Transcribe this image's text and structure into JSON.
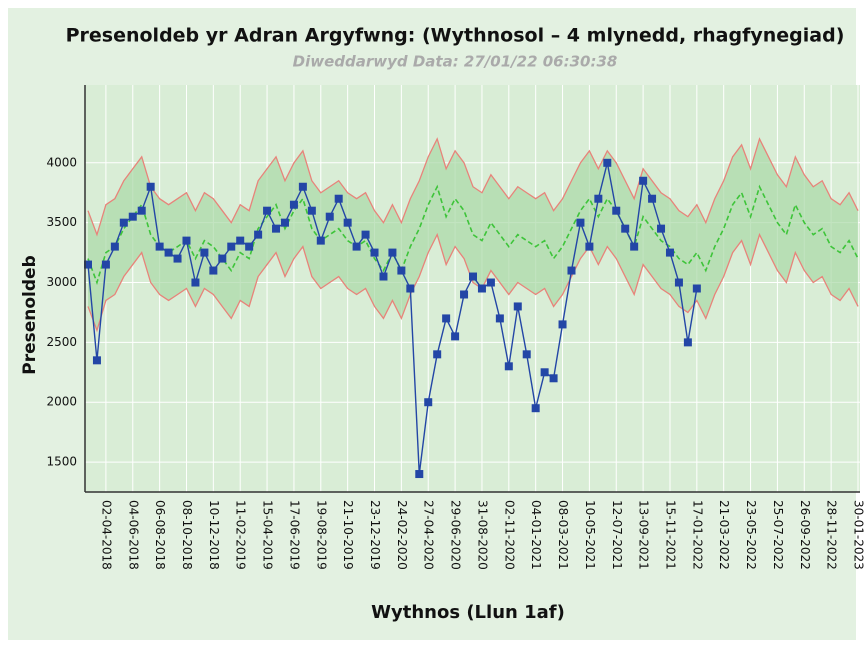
{
  "chart_data": {
    "type": "line",
    "title": "Presenoldeb yr Adran Argyfwng: (Wythnosol – 4 mlynedd, rhagfynegiad)",
    "subtitle": "Diweddarwyd Data: 27/01/22 06:30:38",
    "x_label": "Wythnos (Llun 1af)",
    "y_label": "Presenoldeb",
    "categories": [
      null,
      null,
      "02-04-2018",
      null,
      null,
      "04-06-2018",
      null,
      null,
      "06-08-2018",
      null,
      null,
      "08-10-2018",
      null,
      null,
      "10-12-2018",
      null,
      null,
      "11-02-2019",
      null,
      null,
      "15-04-2019",
      null,
      null,
      "17-06-2019",
      null,
      null,
      "19-08-2019",
      null,
      null,
      "21-10-2019",
      null,
      null,
      "23-12-2019",
      null,
      null,
      "24-02-2020",
      null,
      null,
      "27-04-2020",
      null,
      null,
      "29-06-2020",
      null,
      null,
      "31-08-2020",
      null,
      null,
      "02-11-2020",
      null,
      null,
      "04-01-2021",
      null,
      null,
      "08-03-2021",
      null,
      null,
      "10-05-2021",
      null,
      null,
      "12-07-2021",
      null,
      null,
      "13-09-2021",
      null,
      null,
      "15-11-2021",
      null,
      null,
      "17-01-2022",
      null,
      null,
      "21-03-2022",
      null,
      null,
      "23-05-2022",
      null,
      null,
      "25-07-2022",
      null,
      null,
      "26-09-2022",
      null,
      null,
      "28-11-2022",
      null,
      null,
      "30-01-2023"
    ],
    "ylim": [
      1250,
      4650
    ],
    "yticks": [
      1500,
      2000,
      2500,
      3000,
      3500,
      4000
    ],
    "band": {
      "fill": "#a9d8a6",
      "line_color": "#e8837a",
      "upper": [
        3600,
        3400,
        3650,
        3700,
        3850,
        3950,
        4050,
        3800,
        3700,
        3650,
        3700,
        3750,
        3600,
        3750,
        3700,
        3600,
        3500,
        3650,
        3600,
        3850,
        3950,
        4050,
        3850,
        4000,
        4100,
        3850,
        3750,
        3800,
        3850,
        3750,
        3700,
        3750,
        3600,
        3500,
        3650,
        3500,
        3700,
        3850,
        4050,
        4200,
        3950,
        4100,
        4000,
        3800,
        3750,
        3900,
        3800,
        3700,
        3800,
        3750,
        3700,
        3750,
        3600,
        3700,
        3850,
        4000,
        4100,
        3950,
        4100,
        4000,
        3850,
        3700,
        3950,
        3850,
        3750,
        3700,
        3600,
        3550,
        3650,
        3500,
        3700,
        3850,
        4050,
        4150,
        3950,
        4200,
        4050,
        3900,
        3800,
        4050,
        3900,
        3800,
        3850,
        3700,
        3650,
        3750,
        3600
      ],
      "lower": [
        2800,
        2600,
        2850,
        2900,
        3050,
        3150,
        3250,
        3000,
        2900,
        2850,
        2900,
        2950,
        2800,
        2950,
        2900,
        2800,
        2700,
        2850,
        2800,
        3050,
        3150,
        3250,
        3050,
        3200,
        3300,
        3050,
        2950,
        3000,
        3050,
        2950,
        2900,
        2950,
        2800,
        2700,
        2850,
        2700,
        2900,
        3050,
        3250,
        3400,
        3150,
        3300,
        3200,
        3000,
        2950,
        3100,
        3000,
        2900,
        3000,
        2950,
        2900,
        2950,
        2800,
        2900,
        3050,
        3200,
        3300,
        3150,
        3300,
        3200,
        3050,
        2900,
        3150,
        3050,
        2950,
        2900,
        2800,
        2750,
        2850,
        2700,
        2900,
        3050,
        3250,
        3350,
        3150,
        3400,
        3250,
        3100,
        3000,
        3250,
        3100,
        3000,
        3050,
        2900,
        2850,
        2950,
        2800
      ]
    },
    "series": [
      {
        "color": "#3ec43a",
        "dash": true,
        "values": [
          3200,
          3000,
          3250,
          3300,
          3450,
          3550,
          3650,
          3400,
          3300,
          3250,
          3300,
          3350,
          3200,
          3350,
          3300,
          3200,
          3100,
          3250,
          3200,
          3450,
          3550,
          3650,
          3450,
          3600,
          3700,
          3450,
          3350,
          3400,
          3450,
          3350,
          3300,
          3350,
          3200,
          3100,
          3250,
          3100,
          3300,
          3450,
          3650,
          3800,
          3550,
          3700,
          3600,
          3400,
          3350,
          3500,
          3400,
          3300,
          3400,
          3350,
          3300,
          3350,
          3200,
          3300,
          3450,
          3600,
          3700,
          3550,
          3700,
          3600,
          3450,
          3300,
          3550,
          3450,
          3350,
          3300,
          3200,
          3150,
          3250,
          3100,
          3300,
          3450,
          3650,
          3750,
          3550,
          3800,
          3650,
          3500,
          3400,
          3650,
          3500,
          3400,
          3450,
          3300,
          3250,
          3350,
          3200
        ]
      },
      {
        "color": "#2346a6",
        "marker": "square",
        "values": [
          3150,
          2350,
          3150,
          3300,
          3500,
          3550,
          3600,
          3800,
          3300,
          3250,
          3200,
          3350,
          3000,
          3250,
          3100,
          3200,
          3300,
          3350,
          3300,
          3400,
          3600,
          3450,
          3500,
          3650,
          3800,
          3600,
          3350,
          3550,
          3700,
          3500,
          3300,
          3400,
          3250,
          3050,
          3250,
          3100,
          2950,
          1400,
          2000,
          2400,
          2700,
          2550,
          2900,
          3050,
          2950,
          3000,
          2700,
          2300,
          2800,
          2400,
          1950,
          2250,
          2200,
          2650,
          3100,
          3500,
          3300,
          3700,
          4000,
          3600,
          3450,
          3300,
          3850,
          3700,
          3450,
          3250,
          3000,
          2500,
          2950,
          null,
          null,
          null,
          null,
          null,
          null,
          null,
          null,
          null,
          null,
          null,
          null,
          null,
          null,
          null,
          null,
          null,
          null
        ]
      }
    ],
    "background": "#d9edd6"
  }
}
